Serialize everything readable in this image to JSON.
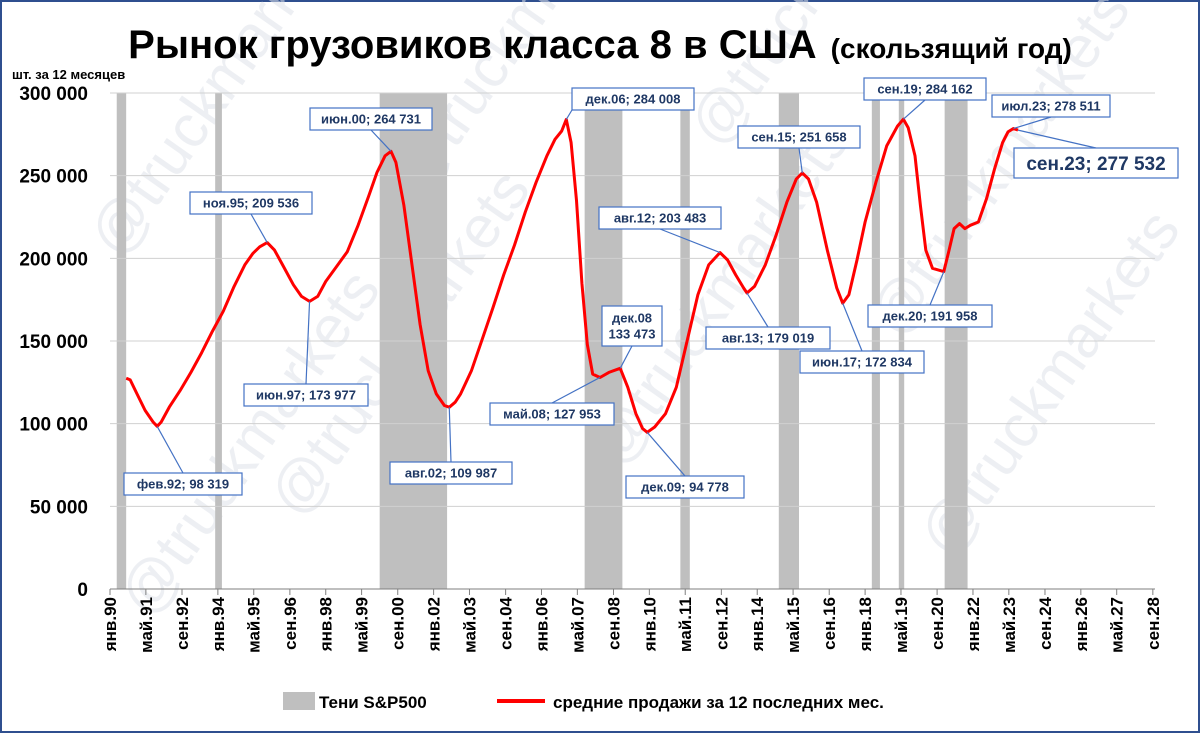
{
  "chart_data": {
    "type": "line",
    "title": "Рынок грузовиков класса 8 в США",
    "subtitle": "(скользящий год)",
    "ylabel": "шт. за 12 месяцев",
    "ylim": [
      0,
      300000
    ],
    "xlim": [
      1990.0,
      2028.75
    ],
    "yticks": [
      {
        "value": 0,
        "label": "0"
      },
      {
        "value": 50000,
        "label": "50 000"
      },
      {
        "value": 100000,
        "label": "100 000"
      },
      {
        "value": 150000,
        "label": "150 000"
      },
      {
        "value": 200000,
        "label": "200 000"
      },
      {
        "value": 250000,
        "label": "250 000"
      },
      {
        "value": 300000,
        "label": "300 000"
      }
    ],
    "xticks": [
      {
        "x": 1990.0,
        "label": "янв.90"
      },
      {
        "x": 1991.33,
        "label": "май.91"
      },
      {
        "x": 1992.67,
        "label": "сен.92"
      },
      {
        "x": 1994.0,
        "label": "янв.94"
      },
      {
        "x": 1995.33,
        "label": "май.95"
      },
      {
        "x": 1996.67,
        "label": "сен.96"
      },
      {
        "x": 1998.0,
        "label": "янв.98"
      },
      {
        "x": 1999.33,
        "label": "май.99"
      },
      {
        "x": 2000.67,
        "label": "сен.00"
      },
      {
        "x": 2002.0,
        "label": "янв.02"
      },
      {
        "x": 2003.33,
        "label": "май.03"
      },
      {
        "x": 2004.67,
        "label": "сен.04"
      },
      {
        "x": 2006.0,
        "label": "янв.06"
      },
      {
        "x": 2007.33,
        "label": "май.07"
      },
      {
        "x": 2008.67,
        "label": "сен.08"
      },
      {
        "x": 2010.0,
        "label": "янв.10"
      },
      {
        "x": 2011.33,
        "label": "май.11"
      },
      {
        "x": 2012.67,
        "label": "сен.12"
      },
      {
        "x": 2014.0,
        "label": "янв.14"
      },
      {
        "x": 2015.33,
        "label": "май.15"
      },
      {
        "x": 2016.67,
        "label": "сен.16"
      },
      {
        "x": 2018.0,
        "label": "янв.18"
      },
      {
        "x": 2019.33,
        "label": "май.19"
      },
      {
        "x": 2020.67,
        "label": "сен.20"
      },
      {
        "x": 2022.0,
        "label": "янв.22"
      },
      {
        "x": 2023.33,
        "label": "май.23"
      },
      {
        "x": 2024.67,
        "label": "сен.24"
      },
      {
        "x": 2026.0,
        "label": "янв.26"
      },
      {
        "x": 2027.33,
        "label": "май.27"
      },
      {
        "x": 2028.67,
        "label": "сен.28"
      }
    ],
    "shades": [
      {
        "x0": 1990.25,
        "x1": 1990.6
      },
      {
        "x0": 1993.9,
        "x1": 1994.15
      },
      {
        "x0": 2000.0,
        "x1": 2002.5
      },
      {
        "x0": 2007.6,
        "x1": 2009.0
      },
      {
        "x0": 2011.15,
        "x1": 2011.5
      },
      {
        "x0": 2014.8,
        "x1": 2015.55
      },
      {
        "x0": 2018.25,
        "x1": 2018.55
      },
      {
        "x0": 2019.25,
        "x1": 2019.45
      },
      {
        "x0": 2020.95,
        "x1": 2021.8
      }
    ],
    "series": [
      {
        "name": "средние продажи за 12 последних мес.",
        "color": "#ff0000",
        "points": [
          [
            1990.6,
            127500
          ],
          [
            1990.75,
            126500
          ],
          [
            1991.0,
            118000
          ],
          [
            1991.3,
            108000
          ],
          [
            1991.6,
            101000
          ],
          [
            1991.75,
            98319
          ],
          [
            1991.9,
            101000
          ],
          [
            1992.2,
            110000
          ],
          [
            1992.6,
            120000
          ],
          [
            1993.0,
            131000
          ],
          [
            1993.4,
            143000
          ],
          [
            1993.8,
            156000
          ],
          [
            1994.2,
            168000
          ],
          [
            1994.6,
            183000
          ],
          [
            1995.0,
            196000
          ],
          [
            1995.3,
            203000
          ],
          [
            1995.55,
            207000
          ],
          [
            1995.83,
            209536
          ],
          [
            1996.1,
            205000
          ],
          [
            1996.4,
            196000
          ],
          [
            1996.8,
            184000
          ],
          [
            1997.1,
            177000
          ],
          [
            1997.4,
            173977
          ],
          [
            1997.7,
            177000
          ],
          [
            1998.0,
            186000
          ],
          [
            1998.4,
            195000
          ],
          [
            1998.8,
            204000
          ],
          [
            1999.2,
            220000
          ],
          [
            1999.6,
            238000
          ],
          [
            1999.9,
            252000
          ],
          [
            2000.2,
            262000
          ],
          [
            2000.42,
            264731
          ],
          [
            2000.6,
            258000
          ],
          [
            2000.9,
            232000
          ],
          [
            2001.2,
            196000
          ],
          [
            2001.5,
            160000
          ],
          [
            2001.8,
            132000
          ],
          [
            2002.1,
            118000
          ],
          [
            2002.4,
            111000
          ],
          [
            2002.58,
            109987
          ],
          [
            2002.8,
            113000
          ],
          [
            2003.0,
            118000
          ],
          [
            2003.4,
            132000
          ],
          [
            2003.8,
            151000
          ],
          [
            2004.2,
            170000
          ],
          [
            2004.6,
            190000
          ],
          [
            2005.0,
            208000
          ],
          [
            2005.4,
            228000
          ],
          [
            2005.8,
            246000
          ],
          [
            2006.2,
            262000
          ],
          [
            2006.5,
            272000
          ],
          [
            2006.75,
            277000
          ],
          [
            2006.92,
            284008
          ],
          [
            2007.1,
            270000
          ],
          [
            2007.3,
            235000
          ],
          [
            2007.5,
            185000
          ],
          [
            2007.7,
            148000
          ],
          [
            2007.9,
            130000
          ],
          [
            2008.17,
            127953
          ],
          [
            2008.5,
            131000
          ],
          [
            2008.92,
            133473
          ],
          [
            2009.2,
            122000
          ],
          [
            2009.5,
            106000
          ],
          [
            2009.75,
            97000
          ],
          [
            2009.92,
            94778
          ],
          [
            2010.2,
            98000
          ],
          [
            2010.6,
            106000
          ],
          [
            2011.0,
            122000
          ],
          [
            2011.4,
            150000
          ],
          [
            2011.8,
            178000
          ],
          [
            2012.2,
            196000
          ],
          [
            2012.62,
            203483
          ],
          [
            2012.9,
            199000
          ],
          [
            2013.2,
            190000
          ],
          [
            2013.5,
            182000
          ],
          [
            2013.62,
            179019
          ],
          [
            2013.9,
            183000
          ],
          [
            2014.3,
            196000
          ],
          [
            2014.7,
            214000
          ],
          [
            2015.1,
            234000
          ],
          [
            2015.45,
            248000
          ],
          [
            2015.67,
            251658
          ],
          [
            2015.9,
            248000
          ],
          [
            2016.2,
            234000
          ],
          [
            2016.6,
            205000
          ],
          [
            2016.95,
            182000
          ],
          [
            2017.17,
            172834
          ],
          [
            2017.4,
            178000
          ],
          [
            2017.7,
            199000
          ],
          [
            2018.0,
            222000
          ],
          [
            2018.4,
            246000
          ],
          [
            2018.8,
            268000
          ],
          [
            2019.2,
            280000
          ],
          [
            2019.42,
            284162
          ],
          [
            2019.6,
            279000
          ],
          [
            2019.85,
            262000
          ],
          [
            2020.05,
            232000
          ],
          [
            2020.25,
            205000
          ],
          [
            2020.5,
            194000
          ],
          [
            2020.92,
            191958
          ],
          [
            2021.1,
            204000
          ],
          [
            2021.3,
            218000
          ],
          [
            2021.5,
            221000
          ],
          [
            2021.7,
            218000
          ],
          [
            2021.9,
            220000
          ],
          [
            2022.2,
            222000
          ],
          [
            2022.5,
            236000
          ],
          [
            2022.8,
            254000
          ],
          [
            2023.1,
            270000
          ],
          [
            2023.3,
            276500
          ],
          [
            2023.5,
            278511
          ],
          [
            2023.67,
            277532
          ]
        ]
      }
    ],
    "annotations": [
      {
        "x": 1991.75,
        "y": 98319,
        "text": "фев.92; 98 319"
      },
      {
        "x": 1995.83,
        "y": 209536,
        "text": "ноя.95; 209 536"
      },
      {
        "x": 1997.4,
        "y": 173977,
        "text": "июн.97; 173 977"
      },
      {
        "x": 2000.42,
        "y": 264731,
        "text": "июн.00; 264 731"
      },
      {
        "x": 2002.58,
        "y": 109987,
        "text": "авг.02; 109 987"
      },
      {
        "x": 2006.92,
        "y": 284008,
        "text": "дек.06; 284 008"
      },
      {
        "x": 2008.17,
        "y": 127953,
        "text": "май.08; 127 953"
      },
      {
        "x": 2008.92,
        "y": 133473,
        "text": "дек.08\n133 473"
      },
      {
        "x": 2009.92,
        "y": 94778,
        "text": "дек.09; 94 778"
      },
      {
        "x": 2012.62,
        "y": 203483,
        "text": "авг.12; 203 483"
      },
      {
        "x": 2013.62,
        "y": 179019,
        "text": "авг.13; 179 019"
      },
      {
        "x": 2015.67,
        "y": 251658,
        "text": "сен.15; 251 658"
      },
      {
        "x": 2017.17,
        "y": 172834,
        "text": "июн.17; 172 834"
      },
      {
        "x": 2019.42,
        "y": 284162,
        "text": "сен.19; 284 162"
      },
      {
        "x": 2020.92,
        "y": 191958,
        "text": "дек.20; 191 958"
      },
      {
        "x": 2023.5,
        "y": 278511,
        "text": "июл.23; 278 511"
      },
      {
        "x": 2023.67,
        "y": 277532,
        "text": "сен.23; 277 532",
        "emphasis": true
      }
    ],
    "legend": {
      "position": "bottom",
      "items": [
        {
          "label": "Тени S&P500",
          "color": "#bfbfbf",
          "kind": "rect"
        },
        {
          "label": "средние продажи за 12 последних мес.",
          "color": "#ff0000",
          "kind": "line"
        }
      ]
    },
    "grid": {
      "y": true,
      "x": false
    }
  },
  "watermark": "@truckmarkets"
}
